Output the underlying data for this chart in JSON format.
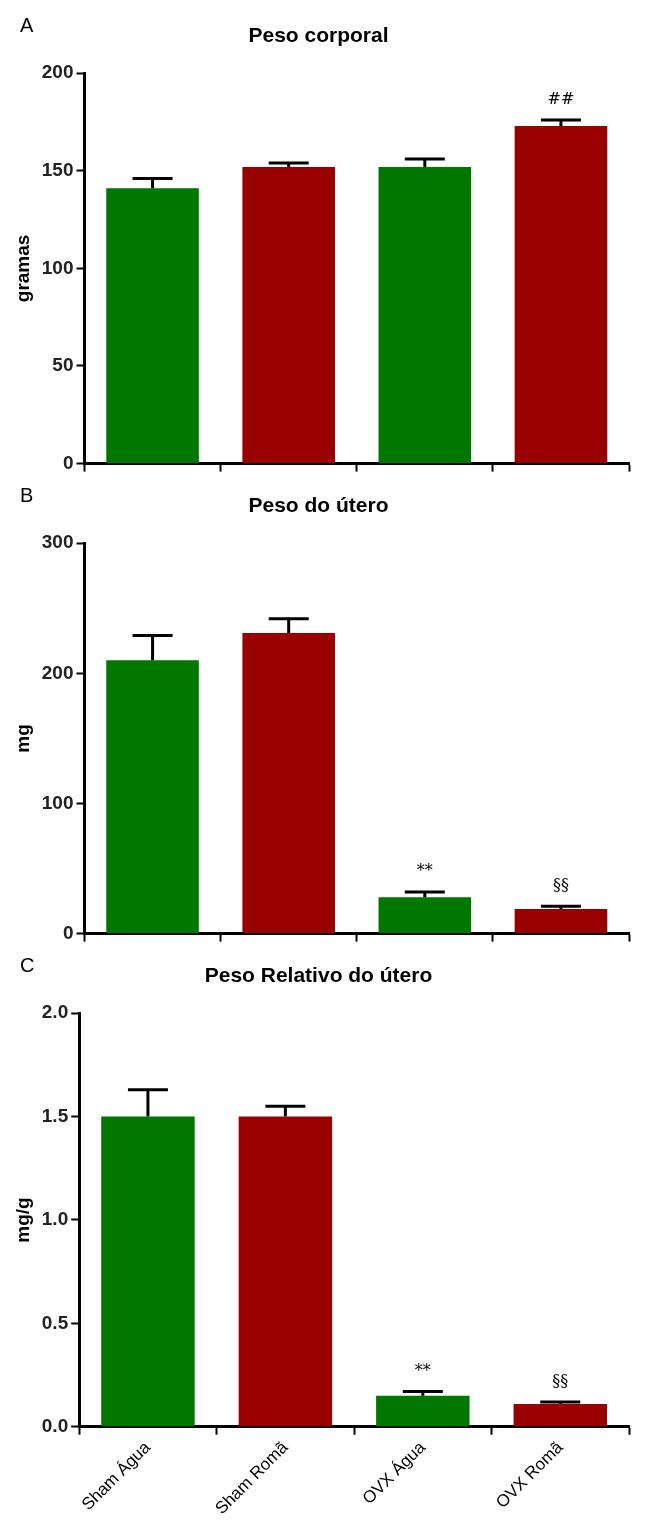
{
  "chart_data": [
    {
      "type": "bar",
      "title": "Peso corporal",
      "ylabel": "gramas",
      "categories": [
        "Sham Água",
        "Sham Romã",
        "OVX Água",
        "OVX Romã"
      ],
      "values": [
        141,
        152,
        152,
        173
      ],
      "errors": [
        5,
        2,
        4,
        3
      ],
      "colors": [
        "#007800",
        "#990000",
        "#007800",
        "#990000"
      ],
      "ylim": [
        0,
        200
      ],
      "yticks": [
        0,
        50,
        100,
        150,
        200
      ],
      "grid": false,
      "legend": false,
      "tick_labels": "y",
      "annotations": [
        "A",
        {
          "text": "##",
          "x": "OVX Romã",
          "y": 173
        }
      ]
    },
    {
      "type": "bar",
      "title": "Peso do útero",
      "ylabel": "mg",
      "categories": [
        "Sham Água",
        "Sham Romã",
        "OVX Água",
        "OVX Romã"
      ],
      "values": [
        210,
        231,
        28,
        19
      ],
      "errors": [
        19,
        11,
        4,
        2
      ],
      "colors": [
        "#007800",
        "#990000",
        "#007800",
        "#990000"
      ],
      "ylim": [
        0,
        300
      ],
      "yticks": [
        0,
        100,
        200,
        300
      ],
      "grid": false,
      "legend": false,
      "tick_labels": "y",
      "annotations": [
        "B",
        {
          "text": "**",
          "x": "OVX Água",
          "y": 28
        },
        {
          "text": "§§",
          "x": "OVX Romã",
          "y": 19
        }
      ]
    },
    {
      "type": "bar",
      "title": "Peso Relativo do útero",
      "ylabel": "mg/g",
      "categories": [
        "Sham Água",
        "Sham Romã",
        "OVX Água",
        "OVX Romã"
      ],
      "values": [
        1.5,
        1.5,
        0.15,
        0.11
      ],
      "errors": [
        0.13,
        0.05,
        0.02,
        0.01
      ],
      "colors": [
        "#007800",
        "#990000",
        "#007800",
        "#990000"
      ],
      "ylim": [
        0,
        2.0
      ],
      "yticks": [
        {
          "value": 0,
          "label": "0.0"
        },
        0.5,
        {
          "value": 1,
          "label": "1.0"
        },
        1.5,
        {
          "value": 2,
          "label": "2.0"
        }
      ],
      "grid": false,
      "legend": false,
      "annotations": [
        "C",
        {
          "text": "**",
          "x": "OVX Água",
          "y": 0.15
        },
        {
          "text": "§§",
          "x": "OVX Romã",
          "y": 0.11
        }
      ]
    }
  ]
}
